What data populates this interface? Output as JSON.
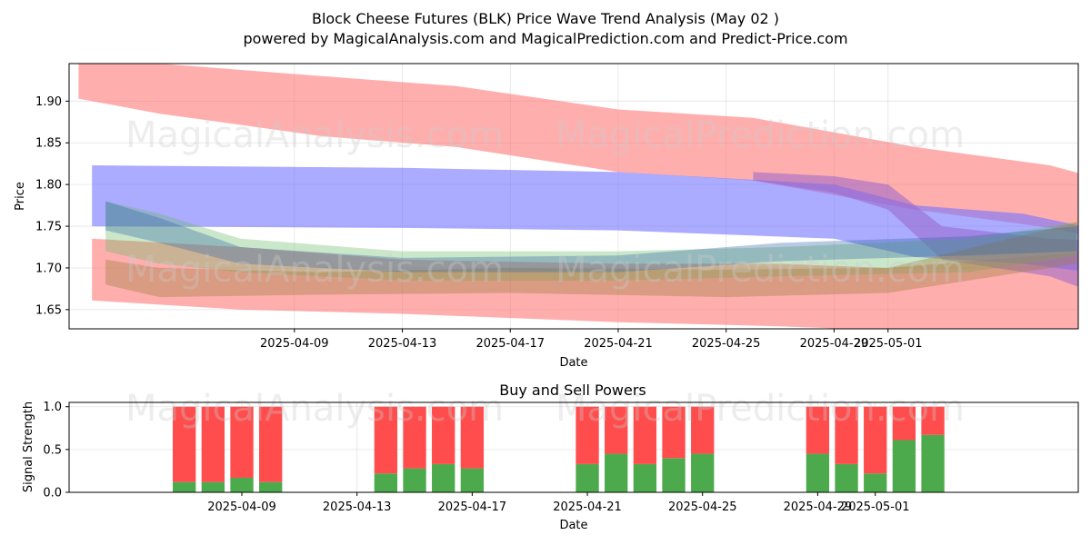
{
  "title": "Block Cheese Futures (BLK) Price Wave Trend Analysis (May 02 )",
  "subtitle": "powered by MagicalAnalysis.com and MagicalPrediction.com and Predict-Price.com",
  "watermarks": [
    "MagicalAnalysis.com",
    "MagicalPrediction.com"
  ],
  "chart_data": [
    {
      "type": "area",
      "name": "price-wave-chart",
      "xlabel": "Date",
      "ylabel": "Price",
      "x_ticks": [
        "2025-04-09",
        "2025-04-13",
        "2025-04-17",
        "2025-04-21",
        "2025-04-25",
        "2025-04-29",
        "2025-05-01"
      ],
      "x_tick_days": [
        8,
        12,
        16,
        20,
        24,
        28,
        30
      ],
      "xlim_days": [
        -0.35,
        37.05
      ],
      "x_day0": "2025-04-01",
      "y_ticks": [
        1.65,
        1.7,
        1.75,
        1.8,
        1.85,
        1.9
      ],
      "ylim": [
        1.627,
        1.945
      ],
      "grid": true,
      "bands": [
        {
          "name": "red-upper-band",
          "color": "#ff6b6b",
          "opacity": 0.55,
          "upper": [
            [
              0.0,
              1.945
            ],
            [
              3.0,
              1.945
            ],
            [
              9.0,
              1.93
            ],
            [
              14.0,
              1.918
            ],
            [
              20.0,
              1.89
            ],
            [
              25.0,
              1.88
            ],
            [
              31.0,
              1.845
            ],
            [
              36.0,
              1.823
            ],
            [
              37.5,
              1.81
            ]
          ],
          "lower": [
            [
              0.0,
              1.903
            ],
            [
              3.0,
              1.885
            ],
            [
              9.0,
              1.858
            ],
            [
              14.0,
              1.845
            ],
            [
              20.0,
              1.815
            ],
            [
              25.0,
              1.805
            ],
            [
              31.0,
              1.77
            ],
            [
              36.0,
              1.748
            ],
            [
              37.5,
              1.738
            ]
          ]
        },
        {
          "name": "red-lower-band",
          "color": "#ff6b6b",
          "opacity": 0.55,
          "upper": [
            [
              0.5,
              1.735
            ],
            [
              6.0,
              1.725
            ],
            [
              12.0,
              1.71
            ],
            [
              20.0,
              1.705
            ],
            [
              26.0,
              1.705
            ],
            [
              30.0,
              1.7
            ],
            [
              37.5,
              1.72
            ]
          ],
          "lower": [
            [
              0.5,
              1.661
            ],
            [
              6.0,
              1.65
            ],
            [
              12.0,
              1.645
            ],
            [
              20.0,
              1.635
            ],
            [
              26.0,
              1.63
            ],
            [
              30.0,
              1.625
            ],
            [
              37.5,
              1.625
            ]
          ]
        },
        {
          "name": "blue-upper-band",
          "color": "#7373ff",
          "opacity": 0.6,
          "upper": [
            [
              0.5,
              1.823
            ],
            [
              12.0,
              1.82
            ],
            [
              20.0,
              1.815
            ],
            [
              28.0,
              1.8
            ],
            [
              31.0,
              1.775
            ],
            [
              35.0,
              1.765
            ],
            [
              37.5,
              1.748
            ]
          ],
          "lower": [
            [
              0.5,
              1.75
            ],
            [
              12.0,
              1.748
            ],
            [
              20.0,
              1.745
            ],
            [
              28.0,
              1.735
            ],
            [
              31.0,
              1.713
            ],
            [
              35.0,
              1.705
            ],
            [
              37.5,
              1.695
            ]
          ]
        },
        {
          "name": "purple-band",
          "color": "#9966cc",
          "opacity": 0.55,
          "upper": [
            [
              25.0,
              1.815
            ],
            [
              28.0,
              1.81
            ],
            [
              30.0,
              1.8
            ],
            [
              32.0,
              1.75
            ],
            [
              36.0,
              1.735
            ],
            [
              37.5,
              1.733
            ]
          ],
          "lower": [
            [
              25.0,
              1.805
            ],
            [
              28.0,
              1.79
            ],
            [
              30.0,
              1.77
            ],
            [
              32.0,
              1.71
            ],
            [
              36.0,
              1.69
            ],
            [
              37.5,
              1.672
            ]
          ]
        },
        {
          "name": "green-wave-band",
          "color": "#66bb66",
          "opacity": 0.35,
          "upper": [
            [
              1.0,
              1.78
            ],
            [
              3.0,
              1.765
            ],
            [
              6.0,
              1.735
            ],
            [
              12.0,
              1.72
            ],
            [
              20.0,
              1.72
            ],
            [
              26.0,
              1.725
            ],
            [
              33.0,
              1.735
            ],
            [
              37.0,
              1.755
            ]
          ],
          "lower": [
            [
              1.0,
              1.72
            ],
            [
              3.0,
              1.705
            ],
            [
              6.0,
              1.695
            ],
            [
              12.0,
              1.685
            ],
            [
              20.0,
              1.685
            ],
            [
              26.0,
              1.69
            ],
            [
              33.0,
              1.695
            ],
            [
              37.0,
              1.715
            ]
          ]
        },
        {
          "name": "olive-wave-band",
          "color": "#a08040",
          "opacity": 0.4,
          "upper": [
            [
              1.0,
              1.71
            ],
            [
              3.0,
              1.7
            ],
            [
              9.0,
              1.695
            ],
            [
              16.0,
              1.7
            ],
            [
              24.0,
              1.698
            ],
            [
              30.0,
              1.7
            ],
            [
              37.0,
              1.755
            ]
          ],
          "lower": [
            [
              1.0,
              1.68
            ],
            [
              3.0,
              1.665
            ],
            [
              9.0,
              1.668
            ],
            [
              16.0,
              1.67
            ],
            [
              24.0,
              1.665
            ],
            [
              30.0,
              1.67
            ],
            [
              37.0,
              1.705
            ]
          ]
        },
        {
          "name": "navy-wave-band",
          "color": "#3366aa",
          "opacity": 0.35,
          "upper": [
            [
              1.0,
              1.78
            ],
            [
              3.0,
              1.76
            ],
            [
              6.0,
              1.725
            ],
            [
              12.0,
              1.712
            ],
            [
              20.0,
              1.715
            ],
            [
              26.0,
              1.73
            ],
            [
              33.0,
              1.738
            ],
            [
              37.0,
              1.75
            ]
          ],
          "lower": [
            [
              1.0,
              1.745
            ],
            [
              3.0,
              1.73
            ],
            [
              6.0,
              1.705
            ],
            [
              12.0,
              1.695
            ],
            [
              20.0,
              1.695
            ],
            [
              26.0,
              1.708
            ],
            [
              33.0,
              1.715
            ],
            [
              37.0,
              1.72
            ]
          ]
        }
      ]
    },
    {
      "type": "bar",
      "name": "buy-sell-powers-chart",
      "title": "Buy and Sell Powers",
      "xlabel": "Date",
      "ylabel": "Signal Strength",
      "x_ticks": [
        "2025-04-09",
        "2025-04-13",
        "2025-04-17",
        "2025-04-21",
        "2025-04-25",
        "2025-04-29",
        "2025-05-01"
      ],
      "x_tick_days": [
        8,
        12,
        16,
        20,
        24,
        28,
        30
      ],
      "xlim_days": [
        2.0,
        37.05
      ],
      "y_ticks": [
        0.0,
        0.5,
        1.0
      ],
      "ylim": [
        0,
        1.05
      ],
      "grid": true,
      "buy_color": "#4caa4c",
      "sell_color": "#ff4c4c",
      "series": [
        {
          "name": "Buy",
          "days": [
            6,
            7,
            8,
            9,
            13,
            14,
            15,
            16,
            20,
            21,
            22,
            23,
            24,
            28,
            29,
            30,
            31,
            32
          ],
          "values": [
            0.12,
            0.12,
            0.17,
            0.12,
            0.22,
            0.28,
            0.33,
            0.28,
            0.33,
            0.45,
            0.33,
            0.4,
            0.45,
            0.45,
            0.33,
            0.22,
            0.61,
            0.67
          ]
        },
        {
          "name": "Sell",
          "days": [
            6,
            7,
            8,
            9,
            13,
            14,
            15,
            16,
            20,
            21,
            22,
            23,
            24,
            28,
            29,
            30,
            31,
            32
          ],
          "values": [
            0.88,
            0.88,
            0.83,
            0.88,
            0.78,
            0.72,
            0.67,
            0.72,
            0.67,
            0.55,
            0.67,
            0.6,
            0.55,
            0.55,
            0.67,
            0.78,
            0.39,
            0.33
          ]
        }
      ]
    }
  ]
}
